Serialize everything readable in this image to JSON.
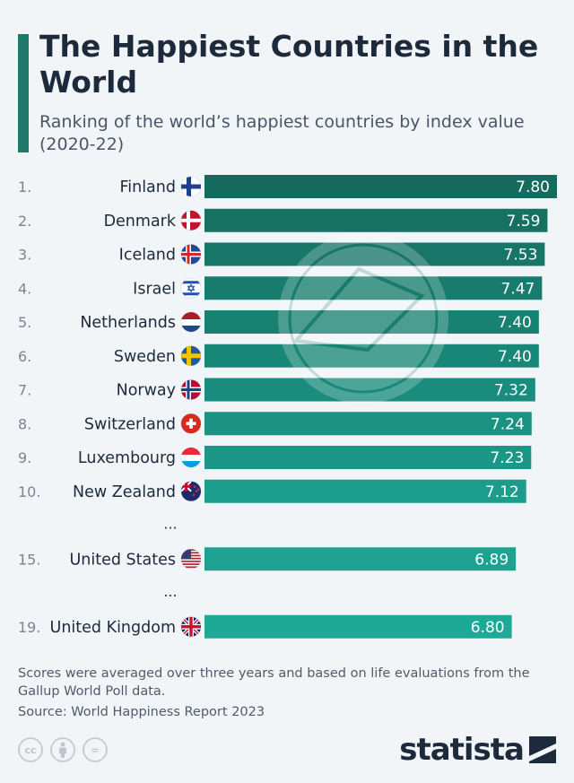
{
  "header": {
    "title": "The Happiest Countries in the World",
    "subtitle": "Ranking of the world’s happiest countries by index value (2020-22)"
  },
  "chart_data": {
    "type": "bar",
    "orientation": "horizontal",
    "rows": [
      {
        "rank": "1.",
        "country": "Finland",
        "value": 7.8,
        "value_label": "7.80",
        "flag": "flag-finland"
      },
      {
        "rank": "2.",
        "country": "Denmark",
        "value": 7.59,
        "value_label": "7.59",
        "flag": "flag-denmark"
      },
      {
        "rank": "3.",
        "country": "Iceland",
        "value": 7.53,
        "value_label": "7.53",
        "flag": "flag-iceland"
      },
      {
        "rank": "4.",
        "country": "Israel",
        "value": 7.47,
        "value_label": "7.47",
        "flag": "flag-israel"
      },
      {
        "rank": "5.",
        "country": "Netherlands",
        "value": 7.4,
        "value_label": "7.40",
        "flag": "flag-netherlands"
      },
      {
        "rank": "6.",
        "country": "Sweden",
        "value": 7.4,
        "value_label": "7.40",
        "flag": "flag-sweden"
      },
      {
        "rank": "7.",
        "country": "Norway",
        "value": 7.32,
        "value_label": "7.32",
        "flag": "flag-norway"
      },
      {
        "rank": "8.",
        "country": "Switzerland",
        "value": 7.24,
        "value_label": "7.24",
        "flag": "flag-switzerland"
      },
      {
        "rank": "9.",
        "country": "Luxembourg",
        "value": 7.23,
        "value_label": "7.23",
        "flag": "flag-luxembourg"
      },
      {
        "rank": "10.",
        "country": "New Zealand",
        "value": 7.12,
        "value_label": "7.12",
        "flag": "flag-new-zealand"
      },
      {
        "ellipsis": "..."
      },
      {
        "rank": "15.",
        "country": "United States",
        "value": 6.89,
        "value_label": "6.89",
        "flag": "flag-united-states"
      },
      {
        "ellipsis": "..."
      },
      {
        "rank": "19.",
        "country": "United Kingdom",
        "value": 6.8,
        "value_label": "6.80",
        "flag": "flag-united-kingdom"
      }
    ],
    "xlim": [
      0,
      7.8
    ],
    "colors": {
      "start": "#156b5e",
      "end": "#1ea896",
      "label": "#ffffff"
    }
  },
  "footer": {
    "note": "Scores were averaged over three years and based on life evaluations from the Gallup World Poll data.",
    "source": "Source: World Happiness Report 2023",
    "license_icons": [
      "cc-icon",
      "by-icon",
      "nd-icon"
    ],
    "cc_text": "cc",
    "nd_text": "=",
    "brand": "statista"
  }
}
